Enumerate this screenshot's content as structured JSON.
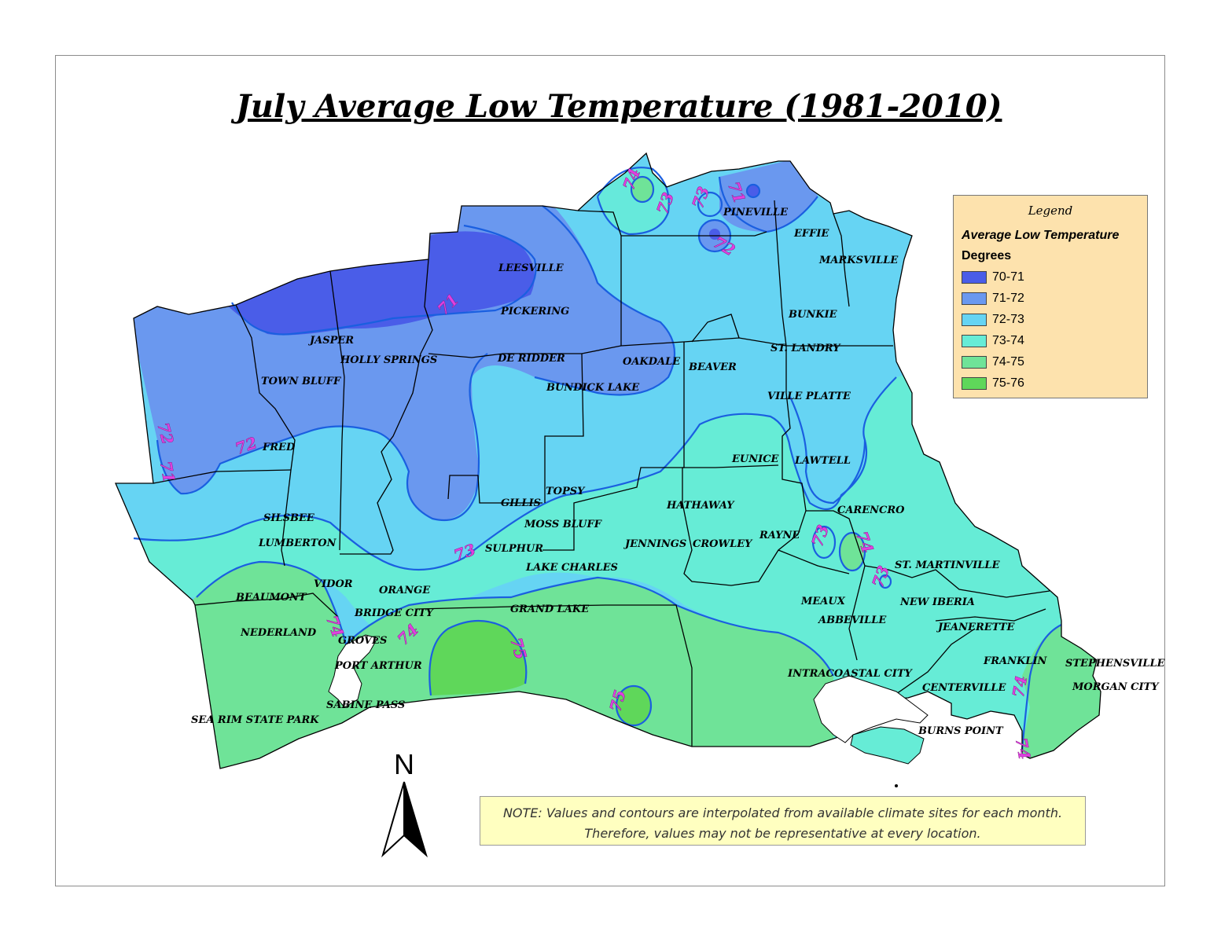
{
  "title": "July Average Low Temperature (1981-2010)",
  "legend": {
    "title": "Legend",
    "subtitle": "Average Low Temperature",
    "unit": "Degrees",
    "items": [
      {
        "label": "70-71",
        "color": "#4a5de8"
      },
      {
        "label": "71-72",
        "color": "#6a98ef"
      },
      {
        "label": "72-73",
        "color": "#66d4f3"
      },
      {
        "label": "73-74",
        "color": "#66ecd6"
      },
      {
        "label": "74-75",
        "color": "#6fe398"
      },
      {
        "label": "75-76",
        "color": "#5fd75a"
      }
    ]
  },
  "note": {
    "line1": "NOTE: Values and contours are interpolated from available climate sites for each month.",
    "line2": "Therefore, values may not be representative at every location."
  },
  "north_arrow": "N",
  "places": {
    "leesville": "LEESVILLE",
    "pineville": "PINEVILLE",
    "effie": "EFFIE",
    "marksville": "MARKSVILLE",
    "bunkie": "BUNKIE",
    "st_landry": "ST. LANDRY",
    "ville_platte": "VILLE PLATTE",
    "pickering": "PICKERING",
    "jasper": "JASPER",
    "holly_springs": "HOLLY SPRINGS",
    "town_bluff": "TOWN BLUFF",
    "de_ridder": "DE RIDDER",
    "oakdale": "OAKDALE",
    "beaver": "BEAVER",
    "bundick_lake": "BUNDICK LAKE",
    "fred": "FRED",
    "eunice": "EUNICE",
    "lawtell": "LAWTELL",
    "topsy": "TOPSY",
    "gillis": "GILLIS",
    "hathaway": "HATHAWAY",
    "carencro": "CARENCRO",
    "silsbee": "SILSBEE",
    "moss_bluff": "MOSS BLUFF",
    "lumberton": "LUMBERTON",
    "sulphur": "SULPHUR",
    "jennings": "JENNINGS",
    "crowley": "CROWLEY",
    "rayne": "RAYNE",
    "lake_charles": "LAKE CHARLES",
    "st_martinville": "ST. MARTINVILLE",
    "vidor": "VIDOR",
    "orange": "ORANGE",
    "beaumont": "BEAUMONT",
    "meaux": "MEAUX",
    "new_iberia": "NEW IBERIA",
    "grand_lake": "GRAND LAKE",
    "bridge_city": "BRIDGE CITY",
    "abbeville": "ABBEVILLE",
    "jeanerette": "JEANERETTE",
    "nederland": "NEDERLAND",
    "groves": "GROVES",
    "franklin": "FRANKLIN",
    "stephensville": "STEPHENSVILLE",
    "port_arthur": "PORT ARTHUR",
    "intracoastal_city": "INTRACOASTAL CITY",
    "centerville": "CENTERVILLE",
    "morgan_city": "MORGAN CITY",
    "sabine_pass": "SABINE PASS",
    "sea_rim_state_park": "SEA RIM STATE PARK",
    "burns_point": "BURNS POINT"
  },
  "contour_labels": {
    "c74_north": "74",
    "c73_north": "73",
    "c73_pineville": "73",
    "c71_pineville": "71",
    "c72_pineville": "72",
    "c71_leesville": "71",
    "c72_west_a": "72",
    "c71_west": "71",
    "c72_fred": "72",
    "c73_sulphur": "73",
    "c73_rayne": "73",
    "c74_carencro": "74",
    "c73_stmartin": "73",
    "c74_vidor": "74",
    "c74_groves": "74",
    "c75_grand": "75",
    "c75_coast": "75",
    "c74_centerville": "74",
    "c74_morgan": "74"
  }
}
